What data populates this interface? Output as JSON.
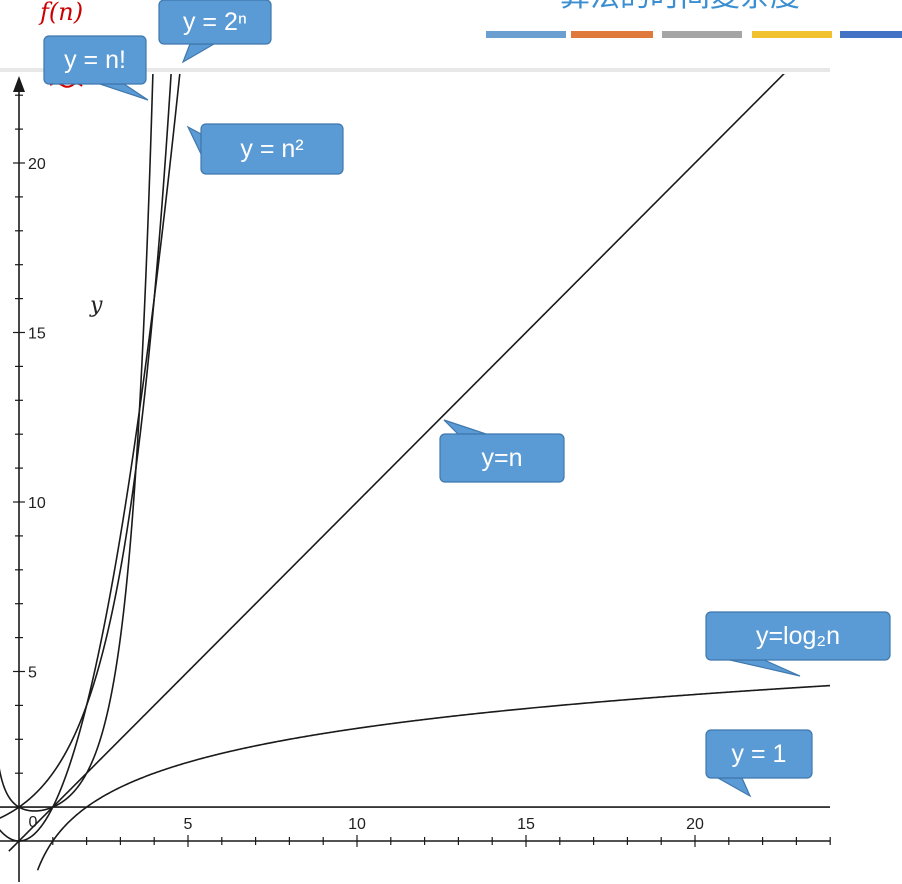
{
  "header": {
    "title_fragment": "算法的时间复杂度",
    "color_bars": [
      "#6a9fd0",
      "#e07a3c",
      "#a5a5a5",
      "#f2c12e",
      "#4472c4"
    ]
  },
  "annotation": {
    "handwritten": "f(n)",
    "color": "#cc0000"
  },
  "chart_data": {
    "type": "line",
    "xlabel": "",
    "ylabel": "y",
    "xlim": [
      -0.6,
      24
    ],
    "ylim": [
      -1,
      22.8
    ],
    "x_ticks": [
      5,
      10,
      15,
      20
    ],
    "y_ticks": [
      5,
      10,
      15,
      20
    ],
    "origin_label": "0",
    "series": [
      {
        "name": "y = n!",
        "key": "factorial",
        "formula": "n!"
      },
      {
        "name": "y = 2ⁿ",
        "key": "exp2",
        "formula": "2^n"
      },
      {
        "name": "y = n²",
        "key": "square",
        "formula": "n^2"
      },
      {
        "name": "y=n",
        "key": "linear",
        "formula": "n"
      },
      {
        "name": "y=log₂n",
        "key": "log2",
        "formula": "log2(n)"
      },
      {
        "name": "y = 1",
        "key": "const",
        "formula": "1"
      }
    ],
    "labels": {
      "factorial": "y = n!",
      "exp2": "y = 2ⁿ",
      "square": "y = n²",
      "linear": "y=n",
      "log2": "y=log₂n",
      "const": "y = 1"
    },
    "colors": {
      "line": "#1a1a1a",
      "callout_fill": "#5b9bd5",
      "callout_stroke": "#3f78ad"
    }
  }
}
